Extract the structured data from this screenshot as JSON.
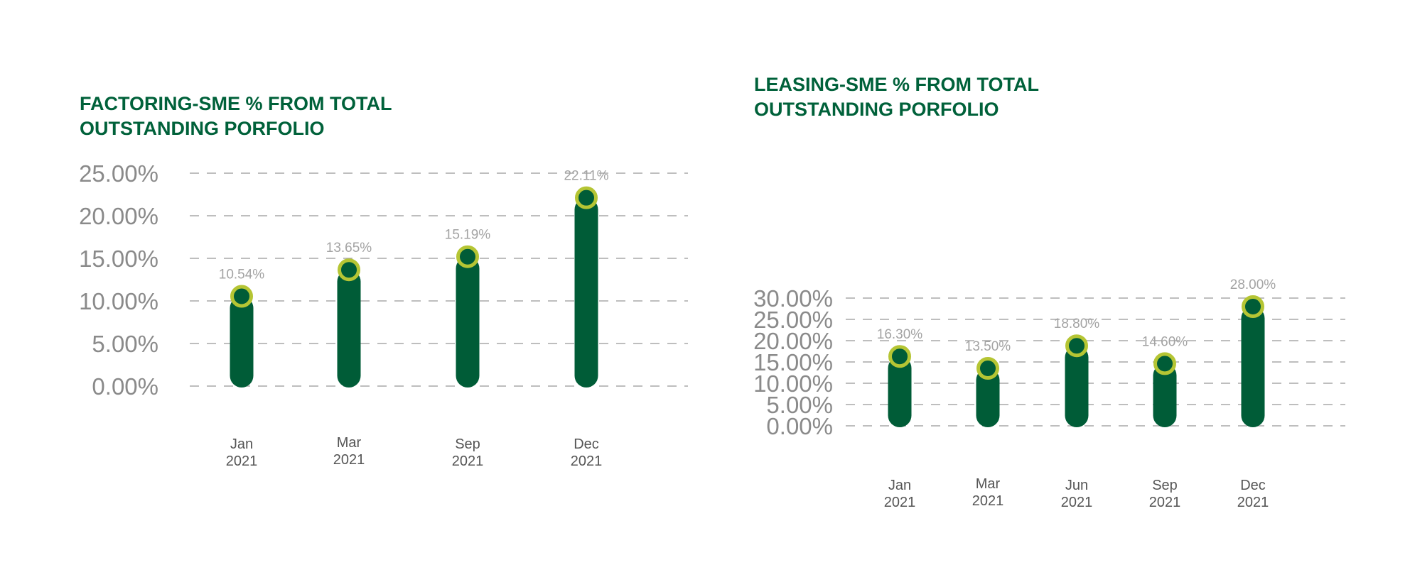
{
  "colors": {
    "bar": "#005c37",
    "marker_ring": "#b5c534",
    "marker_fill": "#005c37",
    "title": "#00613a",
    "grid": "#a8a8a8",
    "tick_text": "#8a8a8a",
    "data_label": "#a3a3a3",
    "category_text": "#555555"
  },
  "chart_data": [
    {
      "type": "bar",
      "title_lines": [
        "FACTORING-SME % FROM TOTAL",
        "OUTSTANDING PORFOLIO"
      ],
      "categories": [
        [
          "Jan",
          "2021"
        ],
        [
          "Mar",
          "2021"
        ],
        [
          "Sep",
          "2021"
        ],
        [
          "Dec",
          "2021"
        ]
      ],
      "values": [
        10.54,
        13.65,
        15.19,
        22.11
      ],
      "data_labels": [
        "10.54%",
        "13.65%",
        "15.19%",
        "22.11%"
      ],
      "y_ticks": [
        "0.00%",
        "5.00%",
        "10.00%",
        "15.00%",
        "20.00%",
        "25.00%"
      ],
      "ylim": [
        0,
        25
      ],
      "grid": true,
      "legend": "none"
    },
    {
      "type": "bar",
      "title_lines": [
        "LEASING-SME % FROM TOTAL",
        "OUTSTANDING PORFOLIO"
      ],
      "categories": [
        [
          "Jan",
          "2021"
        ],
        [
          "Mar",
          "2021"
        ],
        [
          "Jun",
          "2021"
        ],
        [
          "Sep",
          "2021"
        ],
        [
          "Dec",
          "2021"
        ]
      ],
      "values": [
        16.3,
        13.5,
        18.8,
        14.6,
        28.0
      ],
      "data_labels": [
        "16.30%",
        "13.50%",
        "18.80%",
        "14.60%",
        "28.00%"
      ],
      "y_ticks": [
        "0.00%",
        "5.00%",
        "10.00%",
        "15.00%",
        "20.00%",
        "25.00%",
        "30.00%"
      ],
      "ylim": [
        0,
        30
      ],
      "grid": true,
      "legend": "none"
    }
  ]
}
